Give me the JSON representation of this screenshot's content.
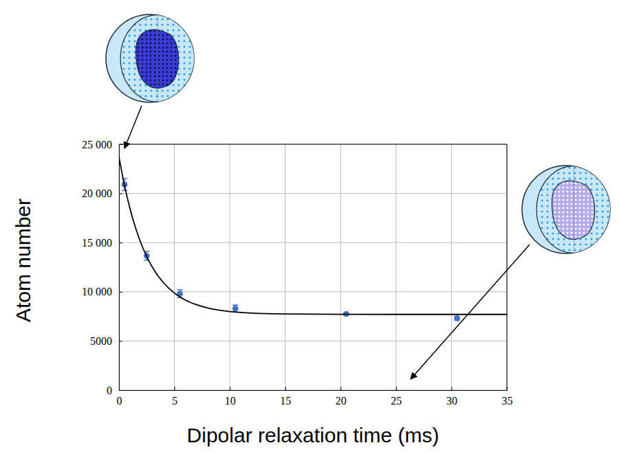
{
  "chart_data": {
    "type": "scatter",
    "xlabel": "Dipolar relaxation time (ms)",
    "ylabel": "Atom number",
    "xlim": [
      0,
      35
    ],
    "ylim": [
      0,
      25000
    ],
    "xticks": [
      0,
      5,
      10,
      15,
      20,
      25,
      30,
      35
    ],
    "yticks": [
      0,
      5000,
      {
        "value": 10000,
        "label": "10 000"
      },
      {
        "value": 15000,
        "label": "15 000"
      },
      {
        "value": 20000,
        "label": "20 000"
      },
      {
        "value": 25000,
        "label": "25 000"
      }
    ],
    "grid": true,
    "series": [
      {
        "type": "scatter",
        "color": "#4472c4",
        "marker": "circle",
        "x": [
          0.5,
          2.5,
          5.5,
          10.5,
          20.5,
          30.5
        ],
        "values": [
          20900,
          13650,
          9800,
          8300,
          7750,
          7300
        ],
        "errors": [
          600,
          450,
          400,
          350,
          150,
          200
        ]
      },
      {
        "type": "line",
        "color": "#000000",
        "line_style": "solid",
        "x": [
          0,
          0.5,
          1,
          1.5,
          2,
          2.5,
          3,
          4,
          5,
          6,
          7,
          8,
          10,
          12,
          15,
          20,
          25,
          30,
          35
        ],
        "values": [
          23700,
          20800,
          18430,
          16480,
          14890,
          13590,
          12520,
          10930,
          9870,
          9150,
          8680,
          8360,
          7990,
          7830,
          7740,
          7710,
          7700,
          7700,
          7700
        ]
      }
    ]
  }
}
